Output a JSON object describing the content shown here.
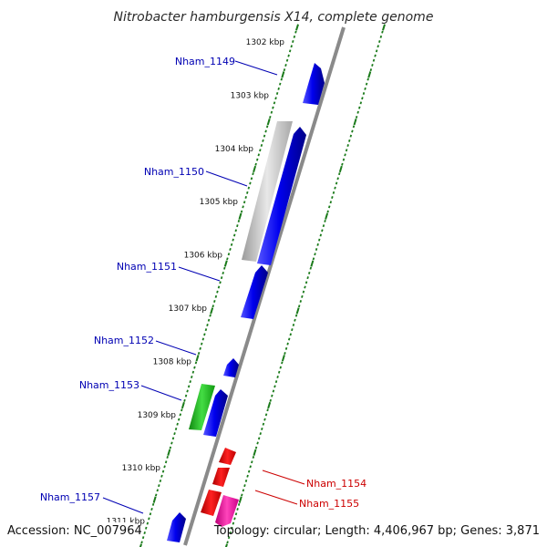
{
  "title": "Nitrobacter hamburgensis X14, complete genome",
  "footer": {
    "accession": "Accession: NC_007964",
    "summary": "Topology: circular; Length: 4,406,967 bp; Genes: 3,871"
  },
  "colors": {
    "backbone": "#8a8a8a",
    "ticks": "#1a7a1a",
    "blue_gene": "#0000e6",
    "gray_gene": "#c8c8c8",
    "green_gene": "#22bb22",
    "red_gene": "#ee0000",
    "pink_gene": "#ee1199",
    "label_blue": "#0000b3",
    "label_red": "#cc0000"
  },
  "kbp_labels": [
    "1302 kbp",
    "1303 kbp",
    "1304 kbp",
    "1305 kbp",
    "1306 kbp",
    "1307 kbp",
    "1308 kbp",
    "1309 kbp",
    "1310 kbp",
    "1311 kbp"
  ],
  "gene_labels": [
    "Nham_1149",
    "Nham_1150",
    "Nham_1151",
    "Nham_1152",
    "Nham_1153",
    "Nham_1154",
    "Nham_1155",
    "Nham_1157"
  ]
}
